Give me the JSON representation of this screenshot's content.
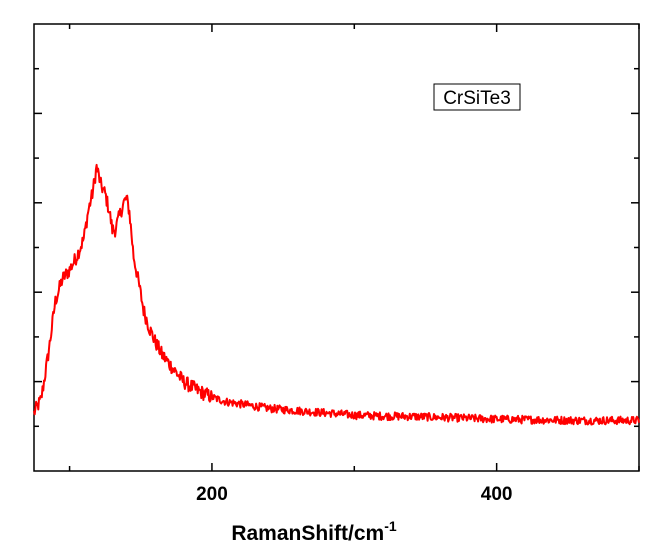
{
  "chart_data": {
    "type": "line",
    "title": "",
    "xlabel": "RamanShift/cm",
    "xlabel_superscript": "-1",
    "ylabel": "",
    "xlim": [
      75,
      500
    ],
    "ylim": [
      0,
      100
    ],
    "x_ticks": [
      200,
      400
    ],
    "y_ticks_labeled": false,
    "legend_label": "CrSiTe3",
    "legend_position": "top-right",
    "grid": false,
    "series": [
      {
        "color": "#ff0000",
        "points": [
          [
            75,
            13
          ],
          [
            80,
            16
          ],
          [
            85,
            26
          ],
          [
            90,
            38
          ],
          [
            95,
            43
          ],
          [
            100,
            45
          ],
          [
            105,
            48
          ],
          [
            110,
            52
          ],
          [
            113,
            58
          ],
          [
            116,
            62
          ],
          [
            119,
            68
          ],
          [
            122,
            64
          ],
          [
            125,
            62
          ],
          [
            128,
            58
          ],
          [
            130,
            54
          ],
          [
            132,
            54
          ],
          [
            135,
            57
          ],
          [
            138,
            60
          ],
          [
            140,
            61
          ],
          [
            142,
            58
          ],
          [
            145,
            48
          ],
          [
            148,
            43
          ],
          [
            152,
            36
          ],
          [
            156,
            32
          ],
          [
            160,
            29
          ],
          [
            165,
            26
          ],
          [
            170,
            24
          ],
          [
            175,
            22
          ],
          [
            180,
            20
          ],
          [
            185,
            19
          ],
          [
            190,
            18
          ],
          [
            200,
            16.5
          ],
          [
            210,
            15.5
          ],
          [
            220,
            15
          ],
          [
            240,
            14
          ],
          [
            260,
            13.5
          ],
          [
            280,
            13
          ],
          [
            300,
            12.5
          ],
          [
            320,
            12.3
          ],
          [
            340,
            12.2
          ],
          [
            360,
            12
          ],
          [
            380,
            11.8
          ],
          [
            400,
            11.6
          ],
          [
            420,
            11.5
          ],
          [
            440,
            11.4
          ],
          [
            460,
            11.3
          ],
          [
            480,
            11.3
          ],
          [
            500,
            11.3
          ]
        ]
      }
    ]
  }
}
